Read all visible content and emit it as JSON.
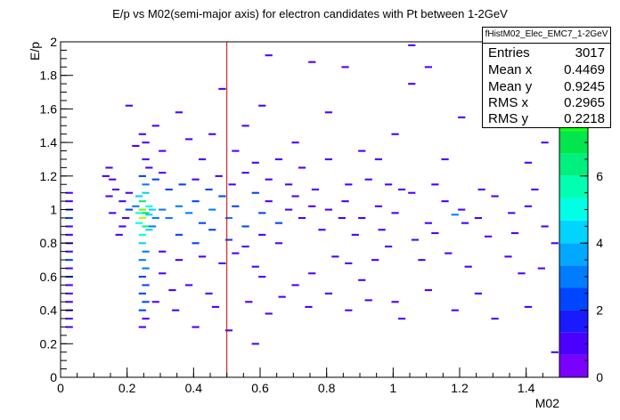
{
  "chart_data": {
    "type": "heatmap",
    "title": "E/p vs M02(semi-major axis) for electron candidates with Pt between 1-2GeV",
    "xlabel": "M02",
    "ylabel": "E/p",
    "xlim": [
      0,
      1.5
    ],
    "ylim": [
      0,
      2
    ],
    "x_ticks": [
      0,
      0.2,
      0.4,
      0.6,
      0.8,
      1,
      1.2,
      1.4
    ],
    "x_tick_labels": [
      "0",
      "0.2",
      "0.4",
      "0.6",
      "0.8",
      "1",
      "1.2",
      "1.4"
    ],
    "y_ticks": [
      0,
      0.2,
      0.4,
      0.6,
      0.8,
      1,
      1.2,
      1.4,
      1.6,
      1.8,
      2
    ],
    "y_tick_labels": [
      "0",
      "0.2",
      "0.4",
      "0.6",
      "0.8",
      "1",
      "1.2",
      "1.4",
      "1.6",
      "1.8",
      "2"
    ],
    "z_ticks": [
      0,
      2,
      4,
      6,
      8
    ],
    "z_tick_labels": [
      "0",
      "2",
      "4",
      "6",
      "8"
    ],
    "zlim": [
      0,
      10
    ],
    "palette": [
      "#7a00ff",
      "#4b00ff",
      "#1a1aff",
      "#0045ff",
      "#007cff",
      "#00a8ff",
      "#00d4ff",
      "#00ffe6",
      "#00ffb0",
      "#00f080",
      "#00e64c",
      "#19ff19",
      "#66ff00",
      "#b3ff00",
      "#e6ff00"
    ],
    "vertical_line": {
      "x": 0.5,
      "color": "#cc0000"
    },
    "cells": [
      [
        0.24,
        0.95,
        9
      ],
      [
        0.24,
        1.0,
        8
      ],
      [
        0.25,
        0.98,
        7
      ],
      [
        0.24,
        1.05,
        6
      ],
      [
        0.25,
        0.9,
        6
      ],
      [
        0.23,
        0.92,
        5
      ],
      [
        0.26,
        1.02,
        5
      ],
      [
        0.24,
        0.85,
        5
      ],
      [
        0.25,
        1.1,
        4
      ],
      [
        0.24,
        0.8,
        4
      ],
      [
        0.26,
        0.97,
        4
      ],
      [
        0.23,
        1.08,
        4
      ],
      [
        0.27,
        1.0,
        4
      ],
      [
        0.28,
        0.95,
        3
      ],
      [
        0.25,
        0.75,
        3
      ],
      [
        0.24,
        0.7,
        3
      ],
      [
        0.25,
        0.65,
        3
      ],
      [
        0.24,
        0.6,
        2
      ],
      [
        0.25,
        0.55,
        2
      ],
      [
        0.24,
        0.5,
        2
      ],
      [
        0.25,
        0.45,
        2
      ],
      [
        0.24,
        0.4,
        2
      ],
      [
        0.25,
        0.35,
        1
      ],
      [
        0.24,
        0.3,
        1
      ],
      [
        0.25,
        1.15,
        3
      ],
      [
        0.24,
        1.2,
        2
      ],
      [
        0.26,
        1.25,
        1
      ],
      [
        0.25,
        1.3,
        1
      ],
      [
        0.25,
        1.4,
        1
      ],
      [
        0.24,
        1.45,
        1
      ],
      [
        0.26,
        0.88,
        4
      ],
      [
        0.23,
        0.98,
        5
      ],
      [
        0.27,
        0.9,
        3
      ],
      [
        0.22,
        1.02,
        3
      ],
      [
        0.3,
        1.0,
        3
      ],
      [
        0.32,
        0.95,
        3
      ],
      [
        0.35,
        1.02,
        3
      ],
      [
        0.38,
        0.98,
        3
      ],
      [
        0.4,
        1.05,
        2
      ],
      [
        0.42,
        0.92,
        2
      ],
      [
        0.45,
        1.0,
        3
      ],
      [
        0.48,
        1.08,
        2
      ],
      [
        0.5,
        0.95,
        3
      ],
      [
        0.52,
        1.02,
        2
      ],
      [
        0.55,
        0.9,
        2
      ],
      [
        0.58,
        1.1,
        2
      ],
      [
        0.6,
        0.98,
        2
      ],
      [
        0.62,
        1.05,
        1
      ],
      [
        0.65,
        0.92,
        2
      ],
      [
        0.68,
        1.0,
        1
      ],
      [
        0.7,
        1.08,
        1
      ],
      [
        0.72,
        0.95,
        1
      ],
      [
        0.75,
        1.02,
        1
      ],
      [
        0.78,
        0.88,
        1
      ],
      [
        0.8,
        1.0,
        1
      ],
      [
        0.32,
        1.12,
        2
      ],
      [
        0.36,
        1.15,
        2
      ],
      [
        0.4,
        1.18,
        1
      ],
      [
        0.44,
        1.12,
        2
      ],
      [
        0.47,
        1.2,
        1
      ],
      [
        0.51,
        1.15,
        1
      ],
      [
        0.55,
        1.22,
        1
      ],
      [
        0.35,
        0.85,
        2
      ],
      [
        0.4,
        0.8,
        2
      ],
      [
        0.45,
        0.88,
        2
      ],
      [
        0.5,
        0.82,
        2
      ],
      [
        0.55,
        0.78,
        1
      ],
      [
        0.6,
        0.85,
        1
      ],
      [
        0.65,
        0.8,
        1
      ],
      [
        0.3,
        0.75,
        1
      ],
      [
        0.35,
        0.7,
        1
      ],
      [
        0.42,
        0.72,
        1
      ],
      [
        0.48,
        0.68,
        1
      ],
      [
        0.52,
        0.74,
        1
      ],
      [
        0.58,
        0.66,
        1
      ],
      [
        0.28,
        1.18,
        2
      ],
      [
        0.3,
        1.22,
        1
      ],
      [
        0.2,
        1.0,
        2
      ],
      [
        0.18,
        1.05,
        1
      ],
      [
        0.19,
        0.95,
        1
      ],
      [
        0.2,
        1.1,
        1
      ],
      [
        0.16,
        1.12,
        1
      ],
      [
        0.14,
        1.08,
        1
      ],
      [
        0.15,
        0.98,
        1
      ],
      [
        0.18,
        0.9,
        1
      ],
      [
        0.17,
        0.85,
        1
      ],
      [
        0.15,
        1.18,
        1
      ],
      [
        0.13,
        1.2,
        1
      ],
      [
        0.02,
        1.0,
        2
      ],
      [
        0.02,
        0.95,
        2
      ],
      [
        0.02,
        0.9,
        1
      ],
      [
        0.02,
        0.85,
        1
      ],
      [
        0.02,
        0.8,
        1
      ],
      [
        0.02,
        0.75,
        1
      ],
      [
        0.02,
        0.7,
        2
      ],
      [
        0.02,
        0.65,
        1
      ],
      [
        0.02,
        0.6,
        2
      ],
      [
        0.02,
        0.55,
        1
      ],
      [
        0.02,
        0.5,
        1
      ],
      [
        0.02,
        0.45,
        1
      ],
      [
        0.02,
        0.4,
        1
      ],
      [
        0.02,
        1.05,
        1
      ],
      [
        0.02,
        1.1,
        1
      ],
      [
        0.02,
        0.35,
        1
      ],
      [
        0.02,
        0.3,
        1
      ],
      [
        0.85,
        1.05,
        1
      ],
      [
        0.9,
        0.95,
        1
      ],
      [
        0.95,
        1.02,
        1
      ],
      [
        1.0,
        0.98,
        1
      ],
      [
        1.05,
        1.1,
        1
      ],
      [
        1.1,
        0.92,
        1
      ],
      [
        1.15,
        1.05,
        1
      ],
      [
        1.2,
        1.0,
        1
      ],
      [
        1.25,
        0.95,
        1
      ],
      [
        1.3,
        1.08,
        1
      ],
      [
        1.35,
        0.98,
        1
      ],
      [
        1.4,
        1.02,
        1
      ],
      [
        1.45,
        0.9,
        1
      ],
      [
        1.18,
        0.97,
        3
      ],
      [
        1.21,
        0.92,
        1
      ],
      [
        1.02,
        1.12,
        1
      ],
      [
        0.88,
        0.85,
        1
      ],
      [
        0.92,
        1.18,
        1
      ],
      [
        0.98,
        0.78,
        1
      ],
      [
        0.6,
        0.6,
        1
      ],
      [
        0.7,
        0.55,
        1
      ],
      [
        0.75,
        0.62,
        1
      ],
      [
        0.8,
        0.5,
        1
      ],
      [
        0.9,
        0.58,
        1
      ],
      [
        1.0,
        0.45,
        1
      ],
      [
        1.1,
        0.52,
        1
      ],
      [
        1.25,
        0.5,
        1
      ],
      [
        1.3,
        0.35,
        1
      ],
      [
        1.4,
        0.42,
        1
      ],
      [
        0.66,
        0.48,
        1
      ],
      [
        0.56,
        0.45,
        1
      ],
      [
        0.44,
        0.5,
        1
      ],
      [
        0.38,
        0.55,
        1
      ],
      [
        0.4,
        0.3,
        1
      ],
      [
        0.5,
        0.28,
        1
      ],
      [
        0.3,
        0.62,
        1
      ],
      [
        0.33,
        0.52,
        1
      ],
      [
        0.45,
        1.45,
        1
      ],
      [
        0.55,
        1.5,
        1
      ],
      [
        0.6,
        1.62,
        1
      ],
      [
        0.48,
        1.72,
        1
      ],
      [
        0.7,
        1.4,
        1
      ],
      [
        0.8,
        1.58,
        1
      ],
      [
        0.9,
        1.35,
        1
      ],
      [
        0.85,
        1.85,
        1
      ],
      [
        1.0,
        1.45,
        1
      ],
      [
        1.05,
        1.75,
        1
      ],
      [
        1.15,
        1.3,
        1
      ],
      [
        1.2,
        1.55,
        1
      ],
      [
        1.3,
        1.62,
        1
      ],
      [
        1.35,
        1.9,
        1
      ],
      [
        0.65,
        1.3,
        1
      ],
      [
        0.52,
        1.35,
        1
      ],
      [
        0.38,
        1.42,
        1
      ],
      [
        0.35,
        1.58,
        1
      ],
      [
        0.62,
        1.92,
        1
      ],
      [
        0.75,
        1.88,
        1
      ],
      [
        1.05,
        1.98,
        1
      ],
      [
        1.4,
        1.28,
        1
      ],
      [
        1.45,
        1.4,
        1
      ],
      [
        1.1,
        1.85,
        1
      ],
      [
        0.95,
        1.3,
        1
      ],
      [
        0.72,
        1.25,
        1
      ],
      [
        0.8,
        1.3,
        1
      ],
      [
        0.58,
        1.28,
        1
      ],
      [
        0.42,
        1.3,
        1
      ],
      [
        0.3,
        1.35,
        1
      ],
      [
        0.28,
        1.5,
        1
      ],
      [
        0.2,
        1.62,
        1
      ],
      [
        0.22,
        1.38,
        1
      ],
      [
        0.14,
        1.25,
        1
      ],
      [
        0.82,
        0.72,
        1
      ],
      [
        0.86,
        0.68,
        1
      ],
      [
        0.94,
        0.7,
        1
      ],
      [
        1.08,
        0.7,
        1
      ],
      [
        1.16,
        0.74,
        1
      ],
      [
        1.22,
        0.66,
        1
      ],
      [
        1.34,
        0.72,
        1
      ],
      [
        1.38,
        0.62,
        1
      ],
      [
        1.44,
        0.65,
        1
      ],
      [
        1.48,
        0.8,
        1
      ],
      [
        1.36,
        0.86,
        1
      ],
      [
        1.28,
        0.84,
        1
      ],
      [
        1.12,
        0.86,
        1
      ],
      [
        1.06,
        0.82,
        1
      ],
      [
        0.96,
        0.88,
        1
      ],
      [
        0.84,
        0.95,
        1
      ],
      [
        0.76,
        1.12,
        1
      ],
      [
        0.68,
        1.15,
        1
      ],
      [
        0.62,
        1.18,
        1
      ],
      [
        0.86,
        1.15,
        1
      ],
      [
        0.98,
        1.15,
        1
      ],
      [
        1.12,
        1.15,
        1
      ],
      [
        1.26,
        1.12,
        1
      ],
      [
        1.42,
        1.12,
        1
      ],
      [
        0.34,
        0.4,
        1
      ],
      [
        0.28,
        0.45,
        1
      ],
      [
        0.46,
        0.42,
        1
      ],
      [
        0.62,
        0.38,
        1
      ],
      [
        0.74,
        0.42,
        1
      ],
      [
        0.86,
        0.4,
        1
      ],
      [
        1.02,
        0.35,
        1
      ],
      [
        0.58,
        0.2,
        1
      ],
      [
        1.48,
        0.15,
        1
      ],
      [
        0.92,
        0.46,
        1
      ],
      [
        1.18,
        0.4,
        1
      ]
    ],
    "legend": null
  },
  "stats_box": {
    "title": "fHistM02_Elec_EMC7_1-2GeV",
    "rows": [
      {
        "key": "Entries",
        "value": "3017"
      },
      {
        "key": "Mean x",
        "value": "0.4469"
      },
      {
        "key": "Mean y",
        "value": "0.9245"
      },
      {
        "key": "RMS x",
        "value": "0.2965"
      },
      {
        "key": "RMS y",
        "value": "0.2218"
      }
    ]
  }
}
